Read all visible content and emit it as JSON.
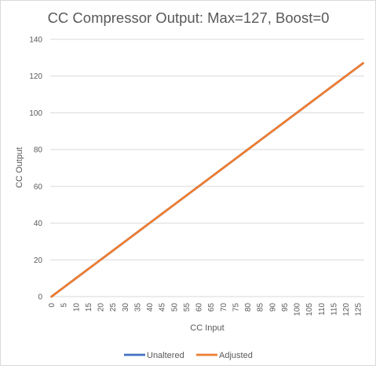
{
  "chart_data": {
    "type": "line",
    "title": "CC Compressor Output: Max=127, Boost=0",
    "xlabel": "CC Input",
    "ylabel": "CC Output",
    "xlim": [
      0,
      127
    ],
    "ylim": [
      0,
      140
    ],
    "grid": true,
    "legend_position": "bottom",
    "y_ticks": [
      "0",
      "20",
      "40",
      "60",
      "80",
      "100",
      "120",
      "140"
    ],
    "x_ticks": [
      "0",
      "5",
      "10",
      "15",
      "20",
      "25",
      "30",
      "35",
      "40",
      "45",
      "50",
      "55",
      "60",
      "65",
      "70",
      "75",
      "80",
      "85",
      "90",
      "95",
      "100",
      "105",
      "110",
      "115",
      "120",
      "125"
    ],
    "x": [
      0,
      5,
      10,
      15,
      20,
      25,
      30,
      35,
      40,
      45,
      50,
      55,
      60,
      65,
      70,
      75,
      80,
      85,
      90,
      95,
      100,
      105,
      110,
      115,
      120,
      125,
      127
    ],
    "series": [
      {
        "name": "Unaltered",
        "color": "#4472c4",
        "values": [
          0,
          5,
          10,
          15,
          20,
          25,
          30,
          35,
          40,
          45,
          50,
          55,
          60,
          65,
          70,
          75,
          80,
          85,
          90,
          95,
          100,
          105,
          110,
          115,
          120,
          125,
          127
        ]
      },
      {
        "name": "Adjusted",
        "color": "#ed7d31",
        "values": [
          0,
          5,
          10,
          15,
          20,
          25,
          30,
          35,
          40,
          45,
          50,
          55,
          60,
          65,
          70,
          75,
          80,
          85,
          90,
          95,
          100,
          105,
          110,
          115,
          120,
          125,
          127
        ]
      }
    ]
  }
}
